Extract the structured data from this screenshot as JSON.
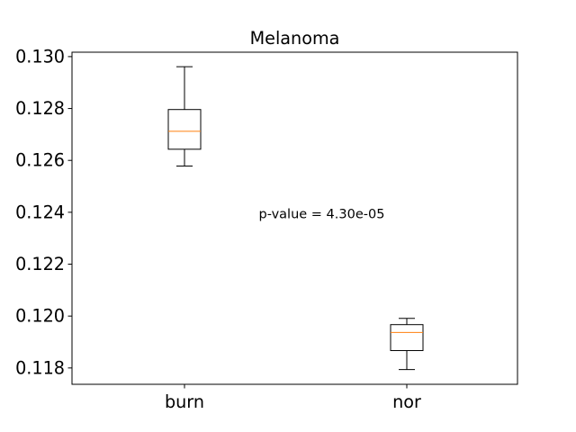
{
  "chart_data": {
    "type": "box",
    "title": "Melanoma",
    "xlabel": "",
    "ylabel": "",
    "ylim": [
      0.11737,
      0.13017
    ],
    "yticks": [
      0.118,
      0.12,
      0.122,
      0.124,
      0.126,
      0.128,
      0.13
    ],
    "ytick_labels": [
      "0.118",
      "0.120",
      "0.122",
      "0.124",
      "0.126",
      "0.128",
      "0.130"
    ],
    "categories": [
      "burn",
      "nor"
    ],
    "boxes": [
      {
        "category": "burn",
        "whisker_low": 0.12578,
        "q1": 0.12643,
        "median": 0.12712,
        "q3": 0.12796,
        "whisker_high": 0.12961
      },
      {
        "category": "nor",
        "whisker_low": 0.11794,
        "q1": 0.11867,
        "median": 0.11937,
        "q3": 0.11967,
        "whisker_high": 0.11991
      }
    ],
    "annotation": "p-value = 4.30e-05",
    "grid": false,
    "colors": {
      "box": "#000000",
      "median": "#ff7f0e"
    }
  }
}
